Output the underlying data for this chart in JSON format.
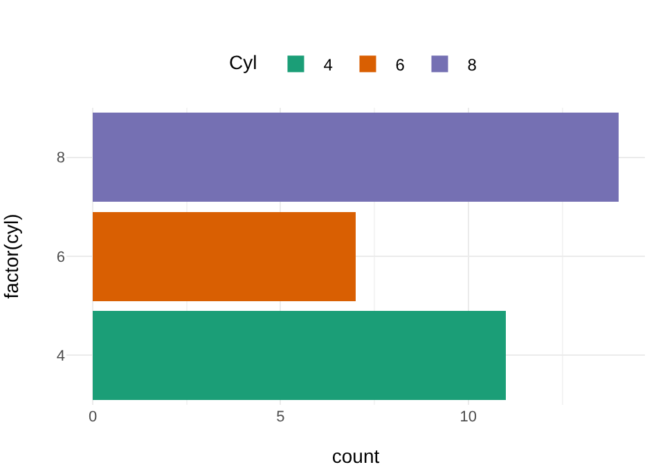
{
  "chart_data": {
    "type": "bar",
    "orientation": "horizontal",
    "stacked": true,
    "legend_title": "Cyl",
    "xlabel": "count",
    "ylabel": "factor(cyl)",
    "categories": [
      "8",
      "6",
      "4"
    ],
    "series": [
      {
        "name": "4",
        "color": "#1b9e77",
        "values": [
          null,
          null,
          11
        ]
      },
      {
        "name": "6",
        "color": "#d95f02",
        "values": [
          null,
          7,
          null
        ]
      },
      {
        "name": "8",
        "color": "#7570b3",
        "values": [
          14,
          null,
          null
        ]
      }
    ],
    "xlim": [
      -0.7,
      14.7
    ],
    "xticks": [
      0,
      5,
      10
    ],
    "grid": true,
    "legend": "top"
  }
}
